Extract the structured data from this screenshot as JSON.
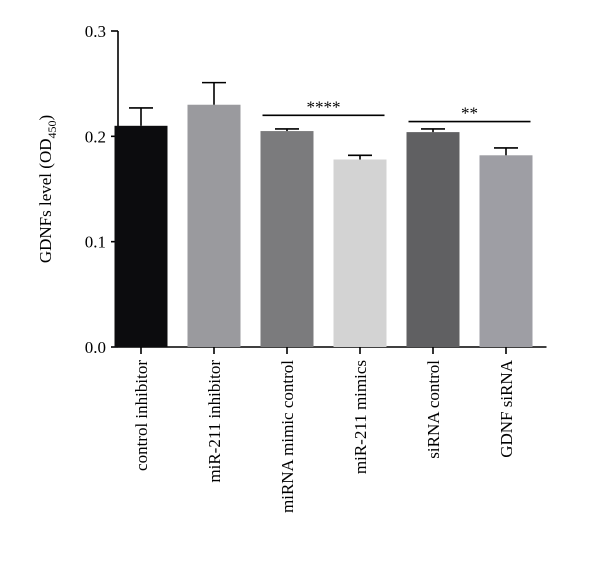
{
  "chart_data": {
    "type": "bar",
    "title": "",
    "xlabel": "",
    "ylabel": {
      "main": "GDNFs level (OD",
      "sub": "450",
      "tail": ")"
    },
    "ylim": [
      0,
      0.3
    ],
    "yticks": [
      0.0,
      0.1,
      0.2,
      0.3
    ],
    "ytick_labels": [
      "0.0",
      "0.1",
      "0.2",
      "0.3"
    ],
    "categories": [
      "control inhibitor",
      "miR-211 inhibitor",
      "miRNA mimic control",
      "miR-211 mimics",
      "siRNA control",
      "GDNF siRNA"
    ],
    "values": [
      0.21,
      0.23,
      0.205,
      0.178,
      0.204,
      0.182
    ],
    "errors": [
      0.017,
      0.021,
      0.002,
      0.004,
      0.003,
      0.007
    ],
    "colors": [
      "#0c0c0e",
      "#9a9a9e",
      "#7b7b7d",
      "#d3d3d3",
      "#606062",
      "#9e9ea4"
    ],
    "significance": [
      {
        "from": 2,
        "to": 3,
        "label": "****",
        "y": 0.22
      },
      {
        "from": 4,
        "to": 5,
        "label": "**",
        "y": 0.214
      }
    ],
    "grid": false,
    "legend": "none"
  }
}
